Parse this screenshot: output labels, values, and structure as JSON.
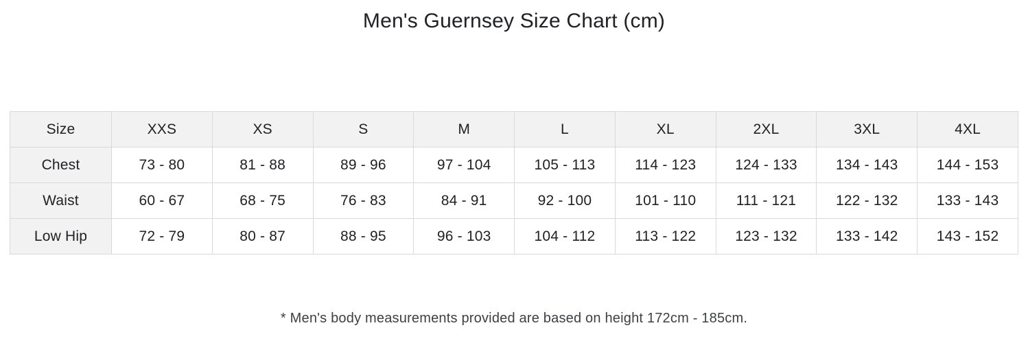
{
  "chart_data": {
    "type": "table",
    "title": "Men's Guernsey Size Chart (cm)",
    "columns": [
      "Size",
      "XXS",
      "XS",
      "S",
      "M",
      "L",
      "XL",
      "2XL",
      "3XL",
      "4XL"
    ],
    "rows": [
      {
        "label": "Chest",
        "values": [
          "73 - 80",
          "81 - 88",
          "89 - 96",
          "97 - 104",
          "105 - 113",
          "114 - 123",
          "124 - 133",
          "134 - 143",
          "144 - 153"
        ]
      },
      {
        "label": "Waist",
        "values": [
          "60 - 67",
          "68 - 75",
          "76 - 83",
          "84 - 91",
          "92 - 100",
          "101 - 110",
          "111 - 121",
          "122 - 132",
          "133 - 143"
        ]
      },
      {
        "label": "Low Hip",
        "values": [
          "72 - 79",
          "80 - 87",
          "88 - 95",
          "96 - 103",
          "104 - 112",
          "113 - 122",
          "123 - 132",
          "133 - 142",
          "143 - 152"
        ]
      }
    ],
    "footnote": "* Men's body measurements provided are based on height 172cm - 185cm.",
    "layout_hints": {
      "header_row_shaded": true,
      "label_column_shaded": true,
      "grid": true
    }
  },
  "colors": {
    "header_background": "#f2f2f2",
    "table_border": "#d9d9d9",
    "text": "#202124",
    "footnote_text": "#3c4043",
    "page_background": "#ffffff"
  }
}
